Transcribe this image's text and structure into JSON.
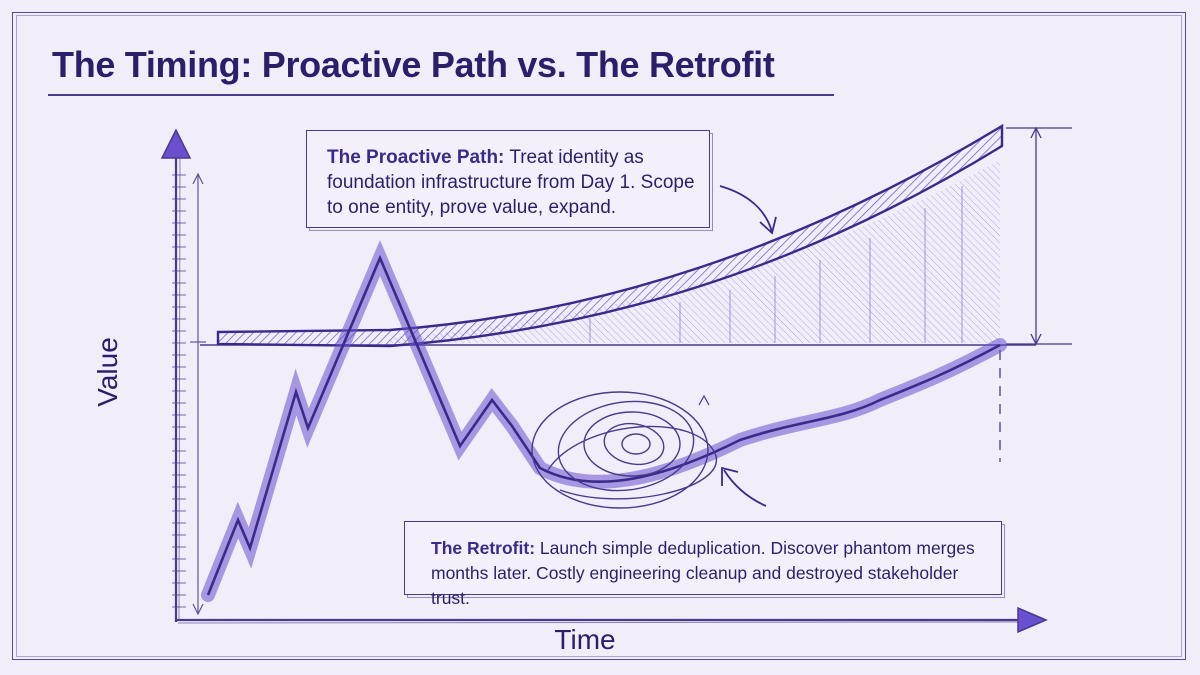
{
  "title": "The Timing: Proactive Path vs. The Retrofit",
  "axes": {
    "y_label": "Value",
    "x_label": "Time"
  },
  "annotations": {
    "proactive": {
      "heading": "The Proactive Path:",
      "text": "Treat identity as foundation infrastructure from Day 1. Scope to one entity, prove value, expand."
    },
    "retrofit": {
      "heading": "The Retrofit:",
      "text": "Launch simple deduplication. Discover phantom merges months later. Costly engineering cleanup and destroyed stakeholder trust."
    }
  },
  "colors": {
    "background": "#f1edf9",
    "ink": "#2b1f6b",
    "stroke": "#4a3a8e",
    "accent": "#6a4fd0"
  }
}
